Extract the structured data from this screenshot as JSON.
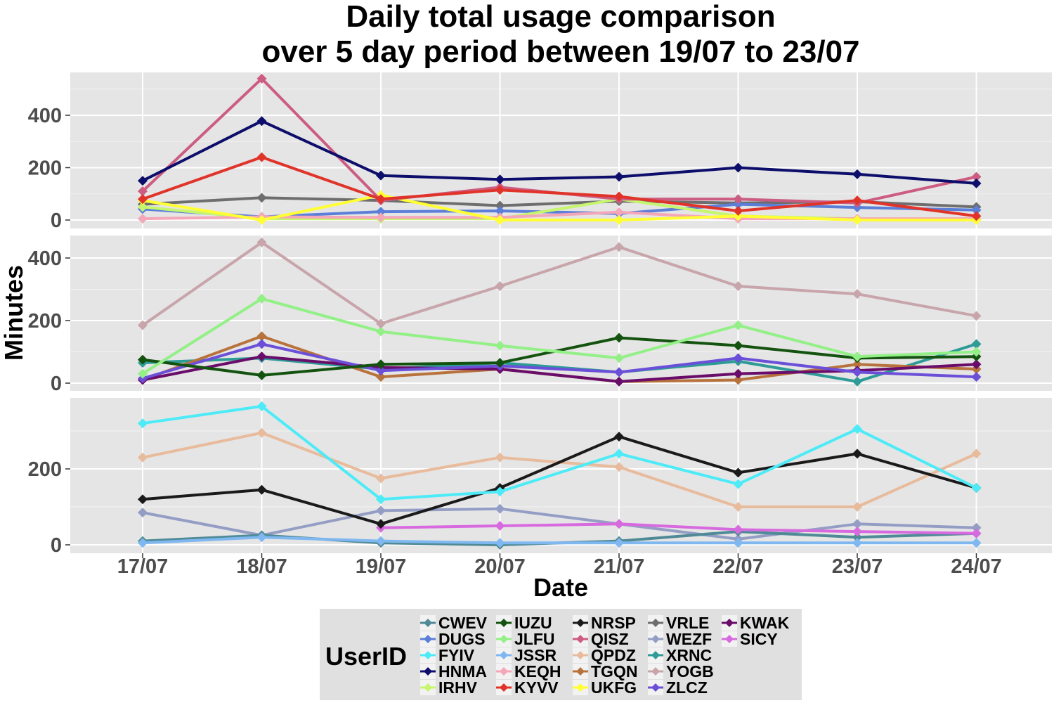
{
  "chart_data": {
    "type": "line",
    "title_lines": [
      "Daily total usage comparison",
      "over 5 day period between 19/07 to 23/07"
    ],
    "xlabel": "Date",
    "ylabel": "Minutes",
    "categories": [
      "17/07",
      "18/07",
      "19/07",
      "20/07",
      "21/07",
      "22/07",
      "23/07",
      "24/07"
    ],
    "grid": true,
    "legend": {
      "title": "UserID",
      "placement": "bottom"
    },
    "legend_order": [
      "CWEV",
      "DUGS",
      "FYIV",
      "HNMA",
      "IRHV",
      "IUZU",
      "JLFU",
      "JSSR",
      "KEQH",
      "KYVV",
      "NRSP",
      "QISZ",
      "QPDZ",
      "TGQN",
      "UKFG",
      "VRLE",
      "WEZF",
      "XRNC",
      "YOGB",
      "ZLCZ",
      "KWAK",
      "SICY"
    ],
    "panels": [
      {
        "ylim": [
          0,
          540
        ],
        "yticks": [
          0,
          200,
          400
        ],
        "series": [
          {
            "name": "VRLE",
            "color": "#6e6e6e",
            "values": [
              60,
              85,
              75,
              55,
              72,
              65,
              70,
              50
            ]
          },
          {
            "name": "DUGS",
            "color": "#5b7fd9",
            "values": [
              42,
              12,
              32,
              35,
              25,
              60,
              48,
              38
            ]
          },
          {
            "name": "IRHV",
            "color": "#c6f56e",
            "values": [
              50,
              5,
              5,
              5,
              80,
              15,
              5,
              5
            ]
          },
          {
            "name": "KEQH",
            "color": "#f4a7b9",
            "values": [
              5,
              12,
              10,
              10,
              30,
              5,
              5,
              5
            ]
          },
          {
            "name": "UKFG",
            "color": "#ffff33",
            "values": [
              75,
              0,
              95,
              0,
              0,
              15,
              0,
              0
            ]
          },
          {
            "name": "QISZ",
            "color": "#cc5c82",
            "values": [
              110,
              540,
              75,
              125,
              80,
              80,
              65,
              165
            ]
          },
          {
            "name": "KYVV",
            "color": "#e0342a",
            "values": [
              80,
              240,
              80,
              115,
              90,
              35,
              75,
              15
            ]
          },
          {
            "name": "HNMA",
            "color": "#0d0d6b",
            "values": [
              150,
              378,
              170,
              155,
              165,
              200,
              175,
              140
            ]
          }
        ]
      },
      {
        "ylim": [
          0,
          450
        ],
        "yticks": [
          0,
          200,
          400
        ],
        "series": [
          {
            "name": "XRNC",
            "color": "#2e9b96",
            "values": [
              65,
              80,
              45,
              65,
              35,
              70,
              5,
              125
            ]
          },
          {
            "name": "TGQN",
            "color": "#b8733d",
            "values": [
              10,
              150,
              20,
              45,
              5,
              10,
              60,
              45
            ]
          },
          {
            "name": "KWAK",
            "color": "#6a0d6a",
            "values": [
              10,
              85,
              50,
              45,
              5,
              30,
              40,
              60
            ]
          },
          {
            "name": "ZLCZ",
            "color": "#6b4fd8",
            "values": [
              15,
              125,
              40,
              55,
              35,
              80,
              35,
              20
            ]
          },
          {
            "name": "IUZU",
            "color": "#14530f",
            "values": [
              75,
              25,
              60,
              65,
              145,
              120,
              80,
              85
            ]
          },
          {
            "name": "JLFU",
            "color": "#93f087",
            "values": [
              30,
              270,
              165,
              120,
              80,
              185,
              85,
              100
            ]
          },
          {
            "name": "YOGB",
            "color": "#c7a5ab",
            "values": [
              185,
              450,
              190,
              310,
              435,
              310,
              285,
              215
            ]
          }
        ]
      },
      {
        "ylim": [
          0,
          365
        ],
        "yticks": [
          0,
          200
        ],
        "series": [
          {
            "name": "WEZF",
            "color": "#949ec5",
            "values": [
              85,
              25,
              90,
              95,
              55,
              15,
              55,
              45
            ]
          },
          {
            "name": "CWEV",
            "color": "#4f8a96",
            "values": [
              10,
              25,
              5,
              0,
              10,
              35,
              20,
              30
            ]
          },
          {
            "name": "JSSR",
            "color": "#7fb8f0",
            "values": [
              5,
              20,
              10,
              5,
              5,
              5,
              5,
              5
            ]
          },
          {
            "name": "SICY",
            "color": "#d86ae0",
            "values": [
              null,
              null,
              45,
              50,
              55,
              40,
              35,
              30
            ]
          },
          {
            "name": "QPDZ",
            "color": "#e8bb9c",
            "values": [
              230,
              295,
              175,
              230,
              205,
              100,
              100,
              240
            ]
          },
          {
            "name": "NRSP",
            "color": "#1a1a1a",
            "values": [
              120,
              145,
              55,
              150,
              285,
              190,
              240,
              150
            ]
          },
          {
            "name": "FYIV",
            "color": "#4debf7",
            "values": [
              320,
              365,
              120,
              140,
              240,
              160,
              305,
              150
            ]
          }
        ]
      }
    ]
  }
}
